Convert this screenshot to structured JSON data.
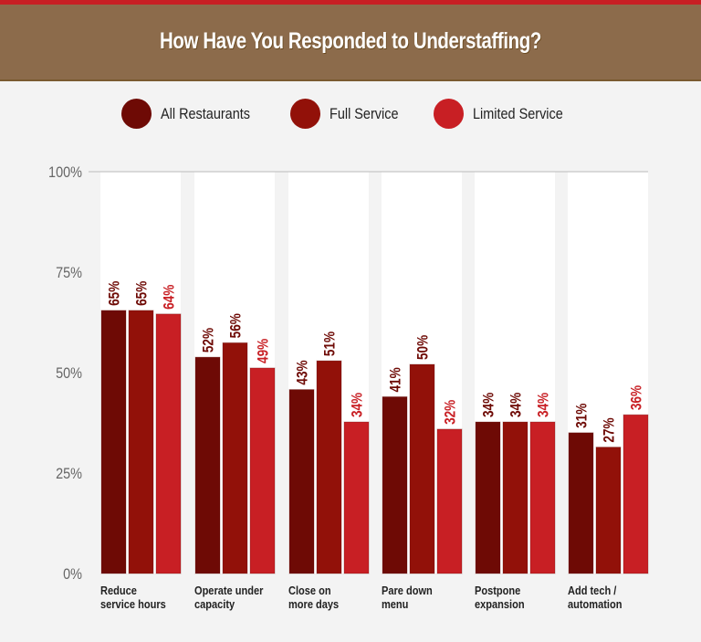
{
  "title": "How Have You Responded to Understaffing?",
  "chart_data": {
    "type": "bar",
    "title": "How Have You Responded to Understaffing?",
    "categories": [
      [
        "Reduce",
        "service hours"
      ],
      [
        "Operate under",
        "capacity"
      ],
      [
        "Close on",
        "more days"
      ],
      [
        "Pare down",
        "menu"
      ],
      [
        "Postpone",
        "expansion"
      ],
      [
        "Add tech /",
        "automation"
      ]
    ],
    "series": [
      {
        "name": "All Restaurants",
        "color": "#6e0a05",
        "values": [
          65,
          52,
          43,
          41,
          34,
          31
        ]
      },
      {
        "name": "Full Service",
        "color": "#921109",
        "values": [
          65,
          56,
          51,
          50,
          34,
          27
        ]
      },
      {
        "name": "Limited Service",
        "color": "#c81f24",
        "values": [
          64,
          49,
          34,
          32,
          34,
          36
        ]
      }
    ],
    "yticks": [
      "0%",
      "25%",
      "50%",
      "75%",
      "100%"
    ],
    "ylim": [
      0,
      100
    ],
    "legend": "top-center",
    "value_suffix": "%"
  }
}
